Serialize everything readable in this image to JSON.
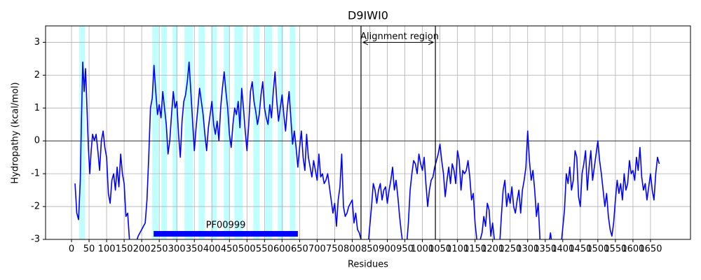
{
  "chart_data": {
    "type": "line",
    "title": "D9IWI0",
    "x_label": "Residues",
    "y_label": "Hydropathy (kcal/mol)",
    "x": [
      10,
      15,
      20,
      25,
      28,
      32,
      36,
      40,
      44,
      48,
      52,
      56,
      60,
      65,
      70,
      75,
      80,
      85,
      90,
      95,
      100,
      105,
      110,
      115,
      120,
      125,
      130,
      135,
      140,
      145,
      150,
      155,
      160,
      165,
      170,
      175,
      180,
      190,
      200,
      210,
      215,
      220,
      225,
      230,
      235,
      240,
      245,
      250,
      255,
      260,
      265,
      270,
      275,
      280,
      285,
      290,
      295,
      300,
      305,
      310,
      315,
      320,
      325,
      330,
      335,
      340,
      345,
      350,
      355,
      360,
      365,
      370,
      375,
      380,
      385,
      390,
      395,
      400,
      405,
      410,
      415,
      420,
      425,
      430,
      435,
      440,
      445,
      450,
      455,
      460,
      465,
      470,
      475,
      480,
      485,
      490,
      495,
      500,
      505,
      510,
      515,
      520,
      525,
      530,
      535,
      540,
      545,
      550,
      555,
      560,
      565,
      570,
      575,
      580,
      585,
      590,
      595,
      600,
      605,
      610,
      615,
      620,
      625,
      630,
      635,
      640,
      645,
      650,
      655,
      660,
      665,
      670,
      675,
      680,
      685,
      690,
      695,
      700,
      705,
      710,
      715,
      720,
      725,
      730,
      735,
      740,
      745,
      750,
      755,
      760,
      765,
      770,
      775,
      780,
      785,
      790,
      795,
      800,
      805,
      810,
      815,
      820,
      825,
      830,
      845,
      850,
      855,
      860,
      865,
      870,
      875,
      880,
      885,
      890,
      895,
      900,
      905,
      910,
      915,
      920,
      925,
      930,
      935,
      940,
      945,
      955,
      960,
      965,
      970,
      975,
      980,
      985,
      990,
      995,
      1000,
      1005,
      1010,
      1015,
      1020,
      1025,
      1030,
      1035,
      1040,
      1045,
      1050,
      1055,
      1060,
      1065,
      1070,
      1075,
      1080,
      1085,
      1090,
      1095,
      1100,
      1105,
      1110,
      1115,
      1120,
      1125,
      1130,
      1135,
      1140,
      1145,
      1150,
      1155,
      1160,
      1170,
      1175,
      1180,
      1185,
      1190,
      1195,
      1200,
      1205,
      1210,
      1220,
      1225,
      1230,
      1235,
      1240,
      1245,
      1250,
      1255,
      1260,
      1265,
      1270,
      1275,
      1280,
      1285,
      1290,
      1295,
      1300,
      1305,
      1310,
      1315,
      1320,
      1325,
      1330,
      1335,
      1340,
      1350,
      1360,
      1365,
      1370,
      1380,
      1395,
      1405,
      1410,
      1415,
      1420,
      1425,
      1430,
      1435,
      1440,
      1445,
      1450,
      1455,
      1460,
      1465,
      1470,
      1475,
      1480,
      1485,
      1490,
      1495,
      1500,
      1505,
      1510,
      1515,
      1520,
      1525,
      1530,
      1535,
      1540,
      1545,
      1550,
      1555,
      1560,
      1565,
      1570,
      1575,
      1580,
      1585,
      1590,
      1595,
      1600,
      1605,
      1610,
      1615,
      1620,
      1625,
      1630,
      1635,
      1640,
      1645,
      1650,
      1655,
      1660,
      1665,
      1670,
      1675
    ],
    "values": [
      -1.3,
      -2.2,
      -2.4,
      -1.2,
      0.5,
      2.4,
      1.5,
      2.2,
      1.0,
      -0.2,
      -1.0,
      -0.3,
      0.2,
      0.0,
      0.2,
      -0.3,
      -0.9,
      0.0,
      0.3,
      -0.2,
      -0.5,
      -1.6,
      -1.9,
      -1.2,
      -1.0,
      -1.5,
      -0.8,
      -1.4,
      -0.4,
      -1.0,
      -1.3,
      -2.3,
      -2.2,
      -3.0,
      -3.2,
      -3.3,
      -3.2,
      -2.9,
      -2.7,
      -2.5,
      -1.8,
      -0.5,
      1.0,
      1.3,
      2.3,
      1.5,
      0.8,
      1.1,
      0.7,
      1.5,
      1.0,
      0.5,
      -0.4,
      0.0,
      0.8,
      1.5,
      1.0,
      1.2,
      0.2,
      -0.5,
      0.6,
      1.2,
      1.4,
      1.8,
      2.4,
      1.5,
      0.6,
      -0.3,
      0.4,
      1.0,
      1.6,
      1.2,
      0.8,
      0.2,
      -0.3,
      0.4,
      0.8,
      1.2,
      0.5,
      0.2,
      0.6,
      0.0,
      1.0,
      1.6,
      2.1,
      1.5,
      1.0,
      0.2,
      -0.2,
      0.5,
      1.0,
      0.8,
      1.2,
      0.4,
      1.6,
      1.0,
      0.3,
      -0.3,
      0.5,
      1.5,
      1.8,
      1.2,
      0.9,
      0.5,
      0.8,
      1.4,
      1.8,
      1.0,
      0.7,
      0.5,
      1.1,
      0.7,
      1.5,
      2.1,
      1.2,
      0.6,
      1.0,
      1.4,
      0.8,
      0.3,
      1.0,
      1.5,
      0.7,
      -0.1,
      0.3,
      -0.2,
      -0.8,
      -0.2,
      0.3,
      -0.5,
      -0.9,
      0.2,
      -0.5,
      -0.8,
      -1.1,
      -0.6,
      -0.9,
      -1.2,
      -0.4,
      -1.1,
      -1.0,
      -1.3,
      -1.2,
      -1.0,
      -1.4,
      -1.8,
      -2.2,
      -1.9,
      -2.6,
      -1.8,
      -1.4,
      -0.4,
      -2.0,
      -2.3,
      -2.2,
      -2.0,
      -1.9,
      -1.8,
      -2.5,
      -2.2,
      -2.7,
      -2.8,
      -3.0,
      -3.2,
      -3.2,
      -2.6,
      -2.0,
      -1.3,
      -1.5,
      -1.9,
      -1.5,
      -1.3,
      -1.8,
      -1.5,
      -1.4,
      -1.9,
      -1.5,
      -1.2,
      -0.8,
      -1.5,
      -1.2,
      -1.7,
      -2.3,
      -2.8,
      -3.2,
      -3.2,
      -2.5,
      -1.5,
      -1.0,
      -0.6,
      -0.7,
      -1.0,
      -0.4,
      -0.7,
      -0.9,
      -0.5,
      -1.3,
      -2.0,
      -1.5,
      -1.2,
      -1.1,
      -0.8,
      -0.6,
      -0.4,
      -0.1,
      -0.6,
      -1.0,
      -1.7,
      -1.2,
      -0.8,
      -1.3,
      -0.7,
      -0.9,
      -1.3,
      -0.3,
      -0.6,
      -1.5,
      -0.9,
      -1.0,
      -0.9,
      -0.6,
      -1.1,
      -1.8,
      -1.6,
      -2.5,
      -3.0,
      -3.2,
      -2.8,
      -2.3,
      -2.6,
      -1.9,
      -2.1,
      -2.9,
      -2.5,
      -3.0,
      -3.2,
      -3.2,
      -2.3,
      -1.5,
      -1.2,
      -2.0,
      -1.6,
      -1.9,
      -1.4,
      -2.0,
      -2.2,
      -1.8,
      -1.5,
      -2.2,
      -1.5,
      -1.2,
      -0.8,
      0.3,
      -0.6,
      -1.2,
      -0.9,
      -1.5,
      -2.3,
      -1.9,
      -3.0,
      -3.2,
      -3.2,
      -3.2,
      -2.8,
      -3.2,
      -3.3,
      -3.2,
      -2.1,
      -1.0,
      -1.3,
      -0.8,
      -1.5,
      -1.2,
      -0.3,
      -0.5,
      -1.7,
      -2.0,
      -1.0,
      -0.7,
      -0.3,
      -1.5,
      -0.8,
      -0.3,
      -1.2,
      -0.8,
      -0.4,
      0.0,
      -0.6,
      -1.0,
      -1.5,
      -2.0,
      -1.6,
      -2.3,
      -2.7,
      -2.9,
      -2.5,
      -1.8,
      -1.2,
      -1.6,
      -1.3,
      -1.8,
      -1.0,
      -1.5,
      -1.3,
      -0.6,
      -1.0,
      -0.9,
      -1.2,
      -0.5,
      -0.9,
      -0.2,
      -1.1,
      -1.5,
      -1.3,
      -1.8,
      -1.4,
      -1.0,
      -1.5,
      -1.8,
      -1.0,
      -0.5,
      -0.7
    ],
    "color": "#0000ff",
    "xlim": [
      -74,
      1764
    ],
    "ylim": [
      -3,
      3.5
    ],
    "xticks": [
      0,
      50,
      100,
      150,
      200,
      250,
      300,
      350,
      400,
      450,
      500,
      550,
      600,
      650,
      700,
      750,
      800,
      850,
      900,
      950,
      1000,
      1050,
      1100,
      1150,
      1200,
      1250,
      1300,
      1350,
      1400,
      1450,
      1500,
      1550,
      1600,
      1650
    ],
    "yticks": [
      -3,
      -2,
      -1,
      0,
      1,
      2,
      3
    ],
    "grid": true,
    "zero_line": 0,
    "shaded_regions": [
      [
        22,
        38
      ],
      [
        230,
        248
      ],
      [
        256,
        272
      ],
      [
        288,
        302
      ],
      [
        322,
        346
      ],
      [
        362,
        380
      ],
      [
        398,
        414
      ],
      [
        434,
        450
      ],
      [
        464,
        488
      ],
      [
        518,
        536
      ],
      [
        552,
        572
      ],
      [
        588,
        604
      ],
      [
        622,
        638
      ]
    ],
    "shade_color": "#c0ffff",
    "alignment": {
      "text": "Alignment region",
      "start": 825,
      "end": 1037,
      "y": 3
    },
    "domain": {
      "label": "PF00999",
      "start": 234,
      "end": 645,
      "y": -2.83,
      "color": "#0000ff"
    }
  }
}
